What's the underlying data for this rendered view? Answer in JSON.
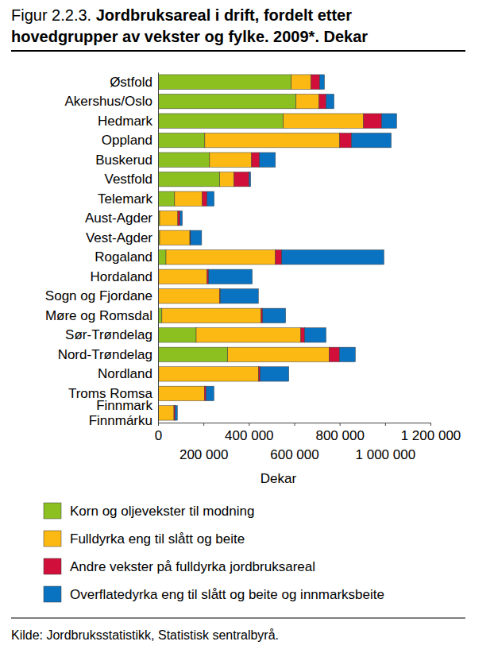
{
  "chart_data": {
    "type": "bar",
    "orientation": "horizontal",
    "stacked": true,
    "title": "Figur 2.2.3. Jordbruksareal i drift, fordelt etter\nhovedgrupper av vekster og fylke. 2009*. Dekar",
    "xlabel": "Dekar",
    "source": "Kilde: Jordbruksstatistikk, Statistisk sentralbyrå.",
    "categories": [
      "Østfold",
      "Akershus/Oslo",
      "Hedmark",
      "Oppland",
      "Buskerud",
      "Vestfold",
      "Telemark",
      "Aust-Agder",
      "Vest-Agder",
      "Rogaland",
      "Hordaland",
      "Sogn og Fjordane",
      "Møre og Romsdal",
      "Sør-Trøndelag",
      "Nord-Trøndelag",
      "Nordland",
      "Troms Romsa",
      "Finnmark\nFinnmárku"
    ],
    "series": [
      {
        "name": "Korn og oljevekster til modning",
        "color": "#8cc021",
        "values": [
          587000,
          608000,
          552000,
          206000,
          227000,
          272000,
          73000,
          7000,
          7000,
          35000,
          3000,
          2000,
          17000,
          168000,
          307000,
          3000,
          1000,
          0
        ]
      },
      {
        "name": "Fulldyrka eng til slått og beite",
        "color": "#fdb913",
        "values": [
          87000,
          101000,
          353000,
          594000,
          185000,
          63000,
          122000,
          80000,
          133000,
          482000,
          213000,
          269000,
          437000,
          461000,
          447000,
          440000,
          203000,
          70000
        ]
      },
      {
        "name": "Andre vekster på fulldyrka jordbruksareal",
        "color": "#d0103a",
        "values": [
          38000,
          31000,
          80000,
          52000,
          35000,
          66000,
          21000,
          10000,
          3000,
          28000,
          7000,
          3000,
          7000,
          17000,
          45000,
          7000,
          7000,
          5000
        ]
      },
      {
        "name": "Overflatedyrka eng til slått og beite og innmarksbeite",
        "color": "#0a73c1",
        "values": [
          21000,
          35000,
          66000,
          175000,
          70000,
          7000,
          31000,
          10000,
          49000,
          450000,
          192000,
          168000,
          101000,
          94000,
          70000,
          126000,
          35000,
          10000
        ]
      }
    ],
    "xlim": [
      0,
      1200000
    ],
    "xticks": [
      0,
      {
        "value": 200000,
        "label": "200 000"
      },
      {
        "value": 400000,
        "label": "400 000"
      },
      {
        "value": 600000,
        "label": "600 000"
      },
      {
        "value": 800000,
        "label": "800 000"
      },
      {
        "value": 1000000,
        "label": "1 000 000"
      },
      {
        "value": 1200000,
        "label": "1 200 000"
      }
    ],
    "grid": false,
    "legend": "bottom"
  }
}
